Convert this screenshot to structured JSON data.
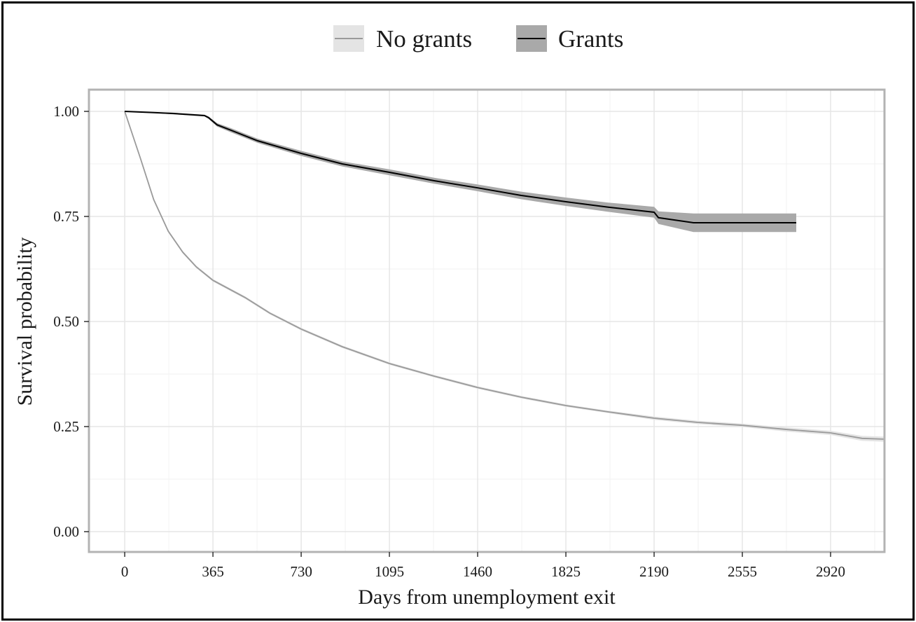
{
  "chart_data": {
    "type": "line",
    "subtype": "kaplan-meier survival curves with confidence bands",
    "xlabel": "Days from unemployment exit",
    "ylabel": "Survival probability",
    "xlim": [
      -148,
      3143
    ],
    "ylim": [
      -0.03,
      1.05
    ],
    "x_ticks": [
      0,
      365,
      730,
      1095,
      1460,
      1825,
      2190,
      2555,
      2920
    ],
    "y_ticks": [
      0.0,
      0.25,
      0.5,
      0.75,
      1.0
    ],
    "y_tick_labels": [
      "0.00",
      "0.25",
      "0.50",
      "0.75",
      "1.00"
    ],
    "grid": true,
    "legend_position": "top",
    "series": [
      {
        "name": "No grants",
        "line_color": "#9a9a9a",
        "band_color": "#e4e4e4",
        "x": [
          0,
          64,
          120,
          180,
          240,
          296,
          365,
          498,
          600,
          730,
          900,
          1095,
          1280,
          1460,
          1640,
          1825,
          2000,
          2190,
          2370,
          2555,
          2740,
          2920,
          3050,
          3143
        ],
        "y": [
          1.0,
          0.89,
          0.79,
          0.715,
          0.665,
          0.63,
          0.598,
          0.557,
          0.52,
          0.482,
          0.44,
          0.4,
          0.37,
          0.343,
          0.32,
          0.3,
          0.285,
          0.27,
          0.26,
          0.253,
          0.243,
          0.235,
          0.222,
          0.22
        ],
        "ci_halfwidth": [
          0,
          0.003,
          0.003,
          0.003,
          0.003,
          0.003,
          0.003,
          0.003,
          0.003,
          0.003,
          0.003,
          0.003,
          0.003,
          0.003,
          0.003,
          0.003,
          0.003,
          0.004,
          0.004,
          0.004,
          0.005,
          0.005,
          0.006,
          0.006
        ]
      },
      {
        "name": "Grants",
        "line_color": "#000000",
        "band_color": "#a9a9a9",
        "x": [
          0,
          120,
          200,
          330,
          347,
          382,
          440,
          550,
          730,
          900,
          1095,
          1280,
          1460,
          1640,
          1825,
          2000,
          2190,
          2208,
          2353,
          2778
        ],
        "y": [
          1.0,
          0.997,
          0.995,
          0.99,
          0.985,
          0.968,
          0.955,
          0.93,
          0.9,
          0.875,
          0.855,
          0.835,
          0.818,
          0.8,
          0.785,
          0.772,
          0.76,
          0.747,
          0.735,
          0.735
        ],
        "ci_halfwidth": [
          0,
          0.001,
          0.002,
          0.002,
          0.003,
          0.004,
          0.005,
          0.005,
          0.006,
          0.006,
          0.007,
          0.007,
          0.008,
          0.009,
          0.01,
          0.011,
          0.013,
          0.015,
          0.022,
          0.022
        ]
      }
    ]
  }
}
